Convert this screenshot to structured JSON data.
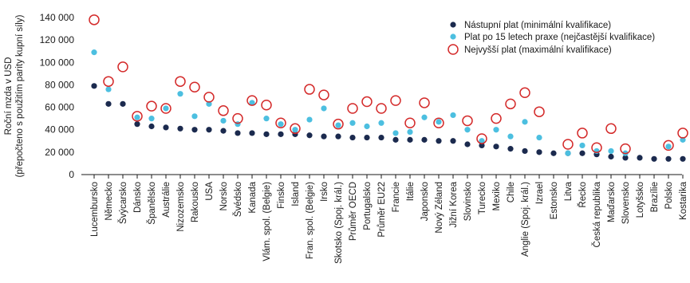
{
  "chart_data": {
    "type": "scatter",
    "ylabel_line1": "Roční mzda v USD",
    "ylabel_line2": "(přepočteno s použitím parity kupní síly)",
    "ylim": [
      0,
      140000
    ],
    "yticks": [
      0,
      20000,
      40000,
      60000,
      80000,
      100000,
      120000,
      140000
    ],
    "ytick_labels": [
      "0",
      "20 000",
      "40 000",
      "60 000",
      "80 000",
      "100 000",
      "120 000",
      "140 000"
    ],
    "grid": false,
    "legend_position": "top-right",
    "categories": [
      "Lucembursko",
      "Německo",
      "Švýcarsko",
      "Dánsko",
      "Španělsko",
      "Austrálie",
      "Nizozemsko",
      "Rakousko",
      "USA",
      "Norsko",
      "Švédsko",
      "Kanada",
      "Vlám. spol. (Belgie)",
      "Finsko",
      "Island",
      "Fran. spol. (Belgie)",
      "Irsko",
      "Skotsko (Spoj. král.)",
      "Průměr OECD",
      "Portugalsko",
      "Průměr EU22",
      "Francie",
      "Itálie",
      "Japonsko",
      "Nový Zéland",
      "Jižní Korea",
      "Slovinsko",
      "Turecko",
      "Mexiko",
      "Chile",
      "Anglie (Spoj. král.)",
      "Izrael",
      "Estonsko",
      "Litva",
      "Řecko",
      "Česká republika",
      "Maďarsko",
      "Slovensko",
      "Lotyšsko",
      "Brazílie",
      "Polsko",
      "Kostarika"
    ],
    "series": [
      {
        "name": "Nástupní plat (minimální kvalifikace)",
        "color": "#1b2a4e",
        "marker": "filled-circle",
        "values": [
          79000,
          63000,
          63000,
          45000,
          43000,
          42000,
          41000,
          40000,
          40000,
          39000,
          37000,
          37000,
          36000,
          36000,
          36000,
          35000,
          34000,
          34000,
          33000,
          33000,
          33000,
          31000,
          31000,
          31000,
          30000,
          30000,
          27000,
          26000,
          25000,
          23000,
          21000,
          20000,
          19000,
          19000,
          19000,
          18000,
          16000,
          15000,
          15000,
          14000,
          14000,
          14000
        ]
      },
      {
        "name": "Plat po 15 letech praxe (nejčastější kvalifikace)",
        "color": "#4cbfe0",
        "marker": "filled-circle",
        "values": [
          109000,
          76000,
          null,
          51000,
          50000,
          59000,
          72000,
          52000,
          63000,
          48000,
          45000,
          64000,
          50000,
          45000,
          40000,
          49000,
          59000,
          44000,
          46000,
          43000,
          46000,
          37000,
          38000,
          51000,
          47000,
          53000,
          40000,
          30000,
          40000,
          34000,
          47000,
          33000,
          null,
          19000,
          26000,
          21000,
          21000,
          19000,
          null,
          null,
          25000,
          31000
        ]
      },
      {
        "name": "Nejvyšší plat (maximální kvalifikace)",
        "color": "#d42a2a",
        "marker": "open-circle",
        "values": [
          138000,
          83000,
          96000,
          52000,
          61000,
          59000,
          83000,
          78000,
          69000,
          57000,
          50000,
          66000,
          62000,
          46000,
          41000,
          76000,
          71000,
          45000,
          59000,
          65000,
          59000,
          66000,
          46000,
          64000,
          46000,
          null,
          48000,
          32000,
          50000,
          63000,
          73000,
          56000,
          null,
          27000,
          37000,
          24000,
          41000,
          23000,
          null,
          null,
          26000,
          37000
        ]
      }
    ]
  }
}
